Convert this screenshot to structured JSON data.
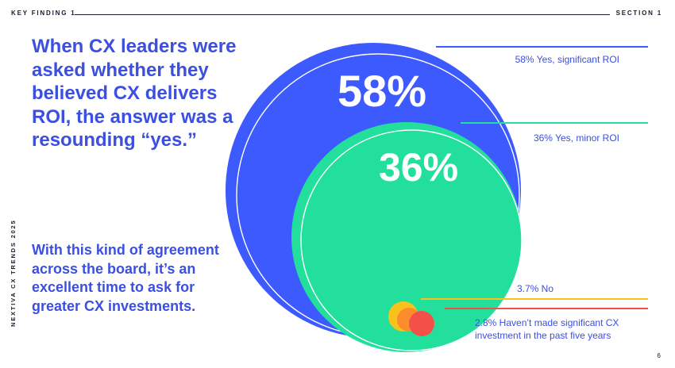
{
  "header": {
    "left_label": "KEY FINDING 1",
    "right_label": "SECTION 1"
  },
  "headline": "When CX leaders were asked whether they believed CX delivers ROI, the answer was a resounding “yes.”",
  "subtext": "With this kind of agreement across the board, it’s an excellent time to ask for greater CX investments.",
  "brand": "NEXTIVA CX TRENDS 2025",
  "page_number": "6",
  "colors": {
    "blue": "#3d5afe",
    "green": "#22e09c",
    "yellow": "#f7c21b",
    "orange": "#fb8c2c",
    "red": "#f4504a",
    "text_blue": "#3b4fe0"
  },
  "chart_data": {
    "type": "bubble",
    "title": "",
    "series": [
      {
        "value": 58,
        "unit": "%",
        "big_label": "58%",
        "legend": "58% Yes, significant ROI",
        "color": "#3d5afe"
      },
      {
        "value": 36,
        "unit": "%",
        "big_label": "36%",
        "legend": "36% Yes, minor ROI",
        "color": "#22e09c"
      },
      {
        "value": 3.7,
        "unit": "%",
        "big_label": "",
        "legend": "3.7% No",
        "color": "#f7c21b"
      },
      {
        "value": 2.8,
        "unit": "%",
        "big_label": "",
        "legend_lines": [
          "2.8% Haven’t made significant CX",
          "investment in the past five years"
        ],
        "color": "#f4504a"
      }
    ]
  }
}
